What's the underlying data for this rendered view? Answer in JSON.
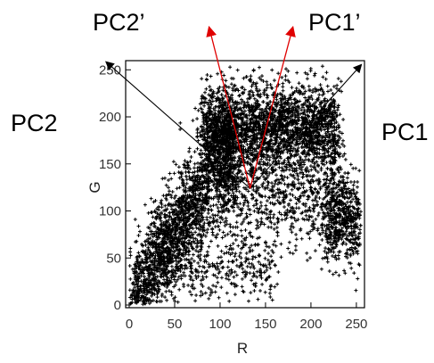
{
  "chart_data": {
    "type": "scatter",
    "title": "",
    "xlabel": "R",
    "ylabel": "G",
    "xlim": [
      0,
      255
    ],
    "ylim": [
      0,
      255
    ],
    "xticks": [
      0,
      50,
      100,
      150,
      200,
      250
    ],
    "yticks": [
      0,
      50,
      100,
      150,
      200,
      250
    ],
    "grid": false,
    "marker": "+",
    "point_color": "#000000",
    "clusters": [
      {
        "x_range": [
          5,
          115
        ],
        "y_along": [
          8,
          175
        ],
        "spread": 28,
        "count": 2200
      },
      {
        "x_range": [
          80,
          230
        ],
        "y_center": 190,
        "spread": 22,
        "count": 2400
      },
      {
        "x_range": [
          100,
          240
        ],
        "y_center": 120,
        "spread": 30,
        "count": 900
      },
      {
        "x_range": [
          215,
          255
        ],
        "y_center": 90,
        "spread": 22,
        "count": 500
      },
      {
        "x_range": [
          40,
          160
        ],
        "y_center": 40,
        "spread": 18,
        "count": 350
      }
    ],
    "annotations": [
      {
        "label": "PC1",
        "color": "#000000",
        "from": [
          133,
          124
        ],
        "to": [
          255,
          255
        ]
      },
      {
        "label": "PC2",
        "color": "#000000",
        "from": [
          133,
          124
        ],
        "to": [
          -25,
          258
        ]
      },
      {
        "label": "PC1’",
        "color": "#e00000",
        "from": [
          133,
          124
        ],
        "to": [
          180,
          295
        ]
      },
      {
        "label": "PC2’",
        "color": "#e00000",
        "from": [
          133,
          124
        ],
        "to": [
          88,
          295
        ]
      }
    ]
  }
}
